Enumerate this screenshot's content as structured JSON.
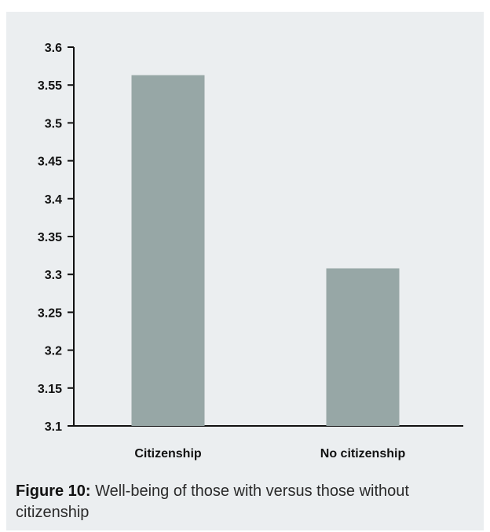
{
  "chart_data": {
    "type": "bar",
    "categories": [
      "Citizenship",
      "No citizenship"
    ],
    "values": [
      3.563,
      3.308
    ],
    "ylim": [
      3.1,
      3.6
    ],
    "yticks": [
      "3.1",
      "3.15",
      "3.2",
      "3.25",
      "3.3",
      "3.35",
      "3.4",
      "3.45",
      "3.5",
      "3.55",
      "3.6"
    ],
    "bar_color": "#97a7a6",
    "background_color": "#ebeef0",
    "grid": false,
    "title": "",
    "xlabel": "",
    "ylabel": ""
  },
  "caption": {
    "label": "Figure 10",
    "separator": ":",
    "text": " Well-being of those with versus those without citizenship"
  }
}
